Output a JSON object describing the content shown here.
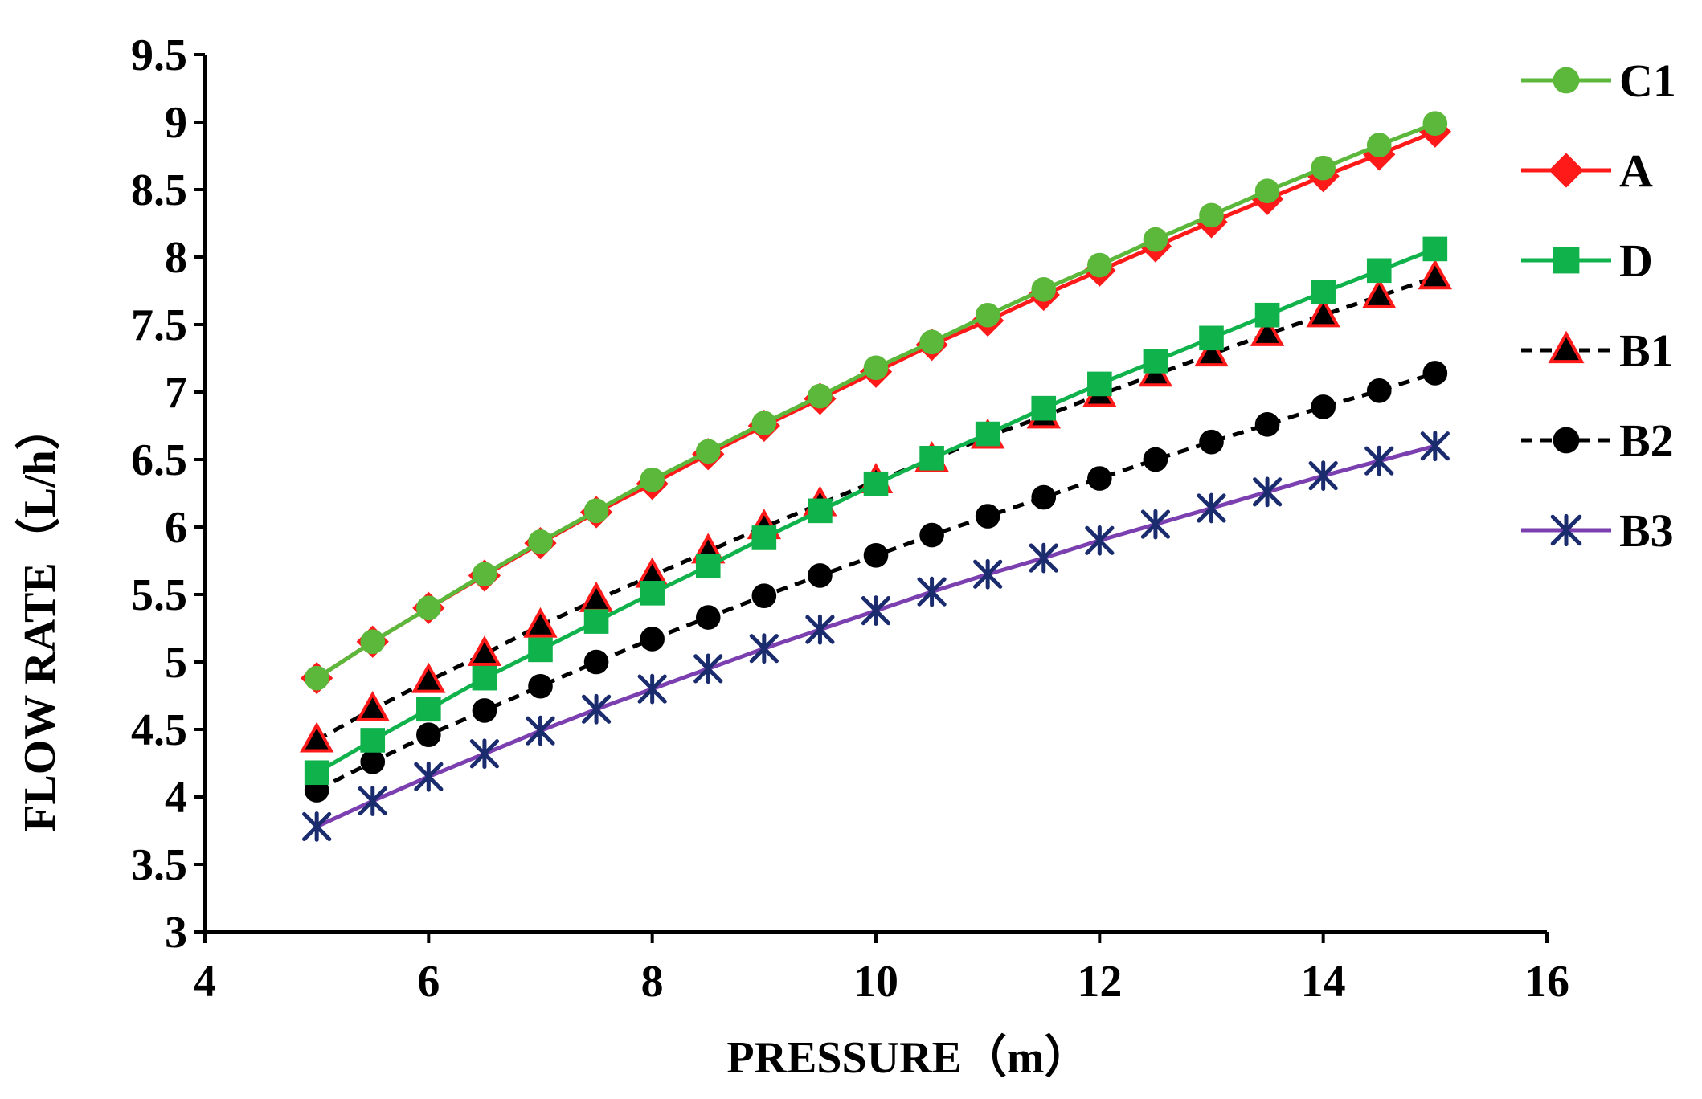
{
  "chart_data": {
    "type": "line",
    "title": "",
    "xlabel": "PRESSURE（m）",
    "ylabel": "FLOW RATE（L/h）",
    "xlim": [
      4,
      16
    ],
    "ylim": [
      3,
      9.5
    ],
    "xticks": [
      4,
      6,
      8,
      10,
      12,
      14,
      16
    ],
    "yticks": [
      3,
      3.5,
      4,
      4.5,
      5,
      5.5,
      6,
      6.5,
      7,
      7.5,
      8,
      8.5,
      9,
      9.5
    ],
    "xtick_labels": [
      "4",
      "6",
      "8",
      "10",
      "12",
      "14",
      "16"
    ],
    "ytick_labels": [
      "3",
      "3.5",
      "4",
      "4.5",
      "5",
      "5.5",
      "6",
      "6.5",
      "7",
      "7.5",
      "8",
      "8.5",
      "9",
      "9.5"
    ],
    "grid": false,
    "legend_position": "right",
    "x": [
      5,
      5.5,
      6,
      6.5,
      7,
      7.5,
      8,
      8.5,
      9,
      9.5,
      10,
      10.5,
      11,
      11.5,
      12,
      12.5,
      13,
      13.5,
      14,
      14.5,
      15
    ],
    "series": [
      {
        "name": "C1",
        "color": "#5cb83a",
        "marker": "circle",
        "marker_fill": "#5cb83a",
        "marker_stroke": "#5cb83a",
        "dashed": false,
        "values": [
          4.88,
          5.15,
          5.4,
          5.65,
          5.89,
          6.12,
          6.35,
          6.56,
          6.77,
          6.97,
          7.18,
          7.37,
          7.57,
          7.76,
          7.94,
          8.13,
          8.31,
          8.49,
          8.66,
          8.83,
          8.99
        ]
      },
      {
        "name": "A",
        "color": "#ff1a1a",
        "marker": "diamond",
        "marker_fill": "#ff1a1a",
        "marker_stroke": "#ff1a1a",
        "dashed": false,
        "values": [
          4.88,
          5.15,
          5.4,
          5.64,
          5.88,
          6.11,
          6.32,
          6.54,
          6.75,
          6.95,
          7.15,
          7.35,
          7.53,
          7.72,
          7.9,
          8.08,
          8.26,
          8.43,
          8.6,
          8.76,
          8.93
        ]
      },
      {
        "name": "D",
        "color": "#10b24c",
        "marker": "square",
        "marker_fill": "#10b24c",
        "marker_stroke": "#10b24c",
        "dashed": false,
        "values": [
          4.18,
          4.42,
          4.65,
          4.88,
          5.09,
          5.3,
          5.51,
          5.71,
          5.92,
          6.12,
          6.32,
          6.51,
          6.69,
          6.88,
          7.06,
          7.23,
          7.4,
          7.57,
          7.74,
          7.9,
          8.06
        ]
      },
      {
        "name": "B1",
        "color": "#000000",
        "marker": "triangle",
        "marker_fill": "#000000",
        "marker_stroke": "#ff1a1a",
        "dashed": true,
        "values": [
          4.42,
          4.65,
          4.86,
          5.06,
          5.27,
          5.46,
          5.64,
          5.82,
          6.0,
          6.17,
          6.34,
          6.5,
          6.67,
          6.82,
          6.98,
          7.13,
          7.28,
          7.43,
          7.57,
          7.71,
          7.85
        ]
      },
      {
        "name": "B2",
        "color": "#000000",
        "marker": "circle",
        "marker_fill": "#000000",
        "marker_stroke": "#000000",
        "dashed": true,
        "values": [
          4.05,
          4.26,
          4.46,
          4.64,
          4.82,
          5.0,
          5.17,
          5.33,
          5.49,
          5.64,
          5.79,
          5.94,
          6.08,
          6.22,
          6.36,
          6.5,
          6.63,
          6.76,
          6.89,
          7.01,
          7.14
        ]
      },
      {
        "name": "B3",
        "color": "#7b3fb0",
        "marker": "asterisk",
        "marker_fill": "none",
        "marker_stroke": "#1a2b6e",
        "dashed": false,
        "values": [
          3.78,
          3.97,
          4.15,
          4.32,
          4.49,
          4.65,
          4.8,
          4.95,
          5.1,
          5.24,
          5.38,
          5.52,
          5.65,
          5.77,
          5.9,
          6.02,
          6.14,
          6.26,
          6.38,
          6.49,
          6.6
        ]
      }
    ]
  }
}
